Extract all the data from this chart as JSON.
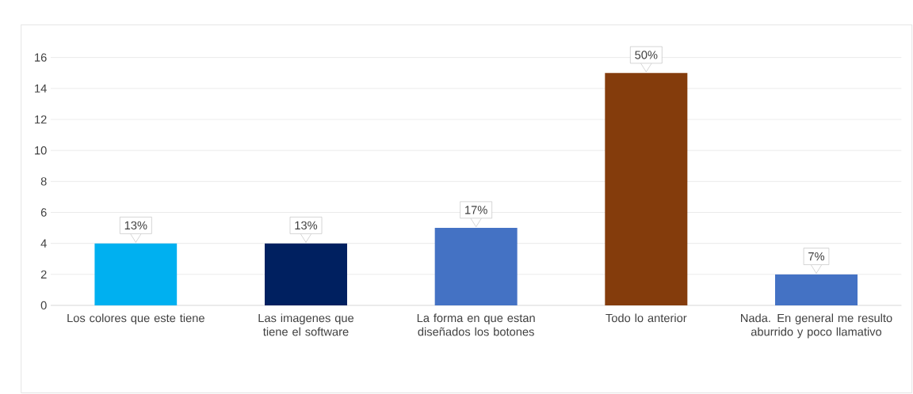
{
  "chart_data": {
    "type": "bar",
    "categories": [
      "Los colores que este tiene",
      "Las imagenes que tiene el software",
      "La forma en que estan diseñados los botones",
      "Todo lo anterior",
      "Nada.  En general me resulto aburrido y poco llamativo"
    ],
    "values": [
      4,
      4,
      5,
      15,
      2
    ],
    "colors": [
      "#00b0f0",
      "#002060",
      "#4472c4",
      "#843c0c",
      "#4472c4"
    ],
    "annotations": [
      {
        "text": "13%",
        "x": "Los colores que este tiene",
        "y": 4
      },
      {
        "text": "13%",
        "x": "Las imagenes que tiene el software",
        "y": 4
      },
      {
        "text": "17%",
        "x": "La forma en que estan diseñados los botones",
        "y": 5
      },
      {
        "text": "50%",
        "x": "Todo lo anterior",
        "y": 15
      },
      {
        "text": "7%",
        "x": "Nada.  En general me resulto aburrido y poco llamativo",
        "y": 2
      }
    ],
    "ylim": [
      0,
      16
    ],
    "yticks": [
      0,
      2,
      4,
      6,
      8,
      10,
      12,
      14,
      16
    ],
    "grid": "y"
  }
}
